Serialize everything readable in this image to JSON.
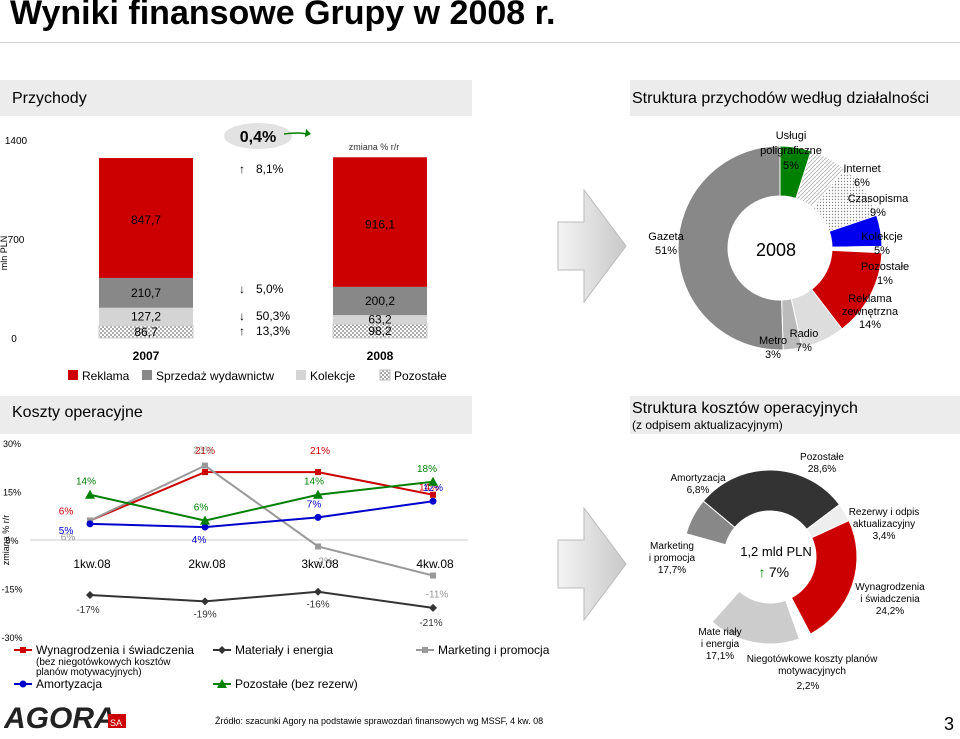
{
  "page": {
    "title": "Wyniki finansowe Grupy w 2008 r.",
    "page_number": "3",
    "source": "Źródło: szacunki Agory na podstawie sprawozdań finansowych wg MSSF, 4 kw. 08",
    "logo_text": "AGORA SA"
  },
  "sections": {
    "revenue_title": "Przychody",
    "rev_structure_title": "Struktura przychodów według działalności",
    "costs_title": "Koszty operacyjne",
    "cost_structure_title": "Struktura kosztów operacyjnych",
    "cost_structure_sub": "(z odpisem aktualizacyjnym)"
  },
  "colors": {
    "reklama": "#cc0000",
    "sprzedaz": "#888888",
    "kolekcje": "#d4d4d4",
    "pozostale": "#ffffff",
    "wynagrodzenia": "#cc0000",
    "materialy": "#333333",
    "marketing": "#999999",
    "amortyzacja": "#0000cc",
    "pozostale_koszty": "#008000",
    "accent_green": "#008000"
  },
  "chart_data": [
    {
      "type": "bar",
      "name": "revenue",
      "stacked": true,
      "categories": [
        "2007",
        "2008"
      ],
      "ylabel": "mln PLN",
      "yticks": [
        "0",
        "700",
        "1400"
      ],
      "ylim": [
        0,
        1400
      ],
      "series": [
        {
          "name": "Pozostałe",
          "values": [
            86.7,
            98.2
          ],
          "labels": [
            "86,7",
            "98,2"
          ]
        },
        {
          "name": "Kolekcje",
          "values": [
            127.2,
            63.2
          ],
          "labels": [
            "127,2",
            "63,2"
          ]
        },
        {
          "name": "Sprzedaż wydawnictw",
          "values": [
            210.7,
            200.2
          ],
          "labels": [
            "210,7",
            "200,2"
          ]
        },
        {
          "name": "Reklama",
          "values": [
            847.7,
            916.1
          ],
          "labels": [
            "847,7",
            "916,1"
          ]
        }
      ],
      "change_header": "zmiana % r/r",
      "total_change": "0,4%",
      "changes": [
        {
          "dir": "up",
          "text": "8,1%"
        },
        {
          "dir": "down",
          "text": "5,0%"
        },
        {
          "dir": "down",
          "text": "50,3%"
        },
        {
          "dir": "up",
          "text": "13,3%"
        }
      ],
      "legend": [
        "Reklama",
        "Sprzedaż wydawnictw",
        "Kolekcje",
        "Pozostałe"
      ]
    },
    {
      "type": "pie",
      "name": "revenue_structure",
      "center_label": "2008",
      "slices": [
        {
          "name": "Usługi poligraficzne",
          "value": 5,
          "label": "5%"
        },
        {
          "name": "Internet",
          "value": 6,
          "label": "6%"
        },
        {
          "name": "Czasopisma",
          "value": 9,
          "label": "9%"
        },
        {
          "name": "Kolekcje",
          "value": 5,
          "label": "5%"
        },
        {
          "name": "Pozostałe",
          "value": 1,
          "label": "1%"
        },
        {
          "name": "Reklama zewnętrzna",
          "value": 14,
          "label": "14%"
        },
        {
          "name": "Radio",
          "value": 7,
          "label": "7%"
        },
        {
          "name": "Metro",
          "value": 3,
          "label": "3%"
        },
        {
          "name": "Gazeta",
          "value": 51,
          "label": "51%"
        }
      ]
    },
    {
      "type": "line",
      "name": "operating_costs",
      "categories": [
        "1kw.08",
        "2kw.08",
        "3kw.08",
        "4kw.08"
      ],
      "ylabel": "zmiana % r/r",
      "yticks": [
        "30%",
        "15%",
        "0%",
        "-15%",
        "-30%"
      ],
      "ylim": [
        -30,
        30
      ],
      "series": [
        {
          "name": "Wynagrodzenia i świadczenia",
          "note": "(bez niegotówkowych kosztów planów motywacyjnych)",
          "values": [
            6,
            21,
            21,
            14
          ],
          "labels": [
            "6%",
            "21%",
            "21%",
            "14%"
          ]
        },
        {
          "name": "Materiały i energia",
          "values": [
            -17,
            -19,
            -16,
            -21
          ],
          "labels": [
            "-17%",
            "-19%",
            "-16%",
            "-21%"
          ]
        },
        {
          "name": "Marketing i promocja",
          "values": [
            6,
            23,
            -2,
            -11
          ],
          "labels": [
            "6%",
            "23%",
            "-2%",
            "-11%"
          ]
        },
        {
          "name": "Amortyzacja",
          "values": [
            5,
            4,
            7,
            12
          ],
          "labels": [
            "5%",
            "4%",
            "7%",
            "12%"
          ]
        },
        {
          "name": "Pozostałe (bez rezerw)",
          "values": [
            14,
            6,
            14,
            18
          ],
          "labels": [
            "14%",
            "6%",
            "14%",
            "18%"
          ]
        }
      ]
    },
    {
      "type": "pie",
      "name": "cost_structure",
      "center_label": "1,2 mld PLN",
      "center_change": "7%",
      "slices": [
        {
          "name": "Pozostałe",
          "value": 28.6,
          "label": "28,6%"
        },
        {
          "name": "Rezerwy i odpis aktualizacyjny",
          "value": 3.4,
          "label": "3,4%"
        },
        {
          "name": "Wynagrodzenia i świadczenia",
          "value": 24.2,
          "label": "24,2%"
        },
        {
          "name": "Niegotówkowe koszty planów motywacyjnych",
          "value": 2.2,
          "label": "2,2%"
        },
        {
          "name": "Materiały i energia",
          "value": 17.1,
          "label": "17,1%"
        },
        {
          "name": "Marketing i promocja",
          "value": 17.7,
          "label": "17,7%"
        },
        {
          "name": "Amortyzacja",
          "value": 6.8,
          "label": "6,8%"
        }
      ]
    }
  ]
}
